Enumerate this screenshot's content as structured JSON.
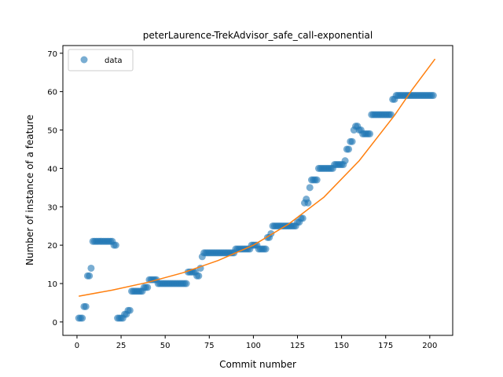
{
  "chart_data": {
    "type": "scatter",
    "title": "peterLaurence-TrekAdvisor_safe_call-exponential",
    "xlabel": "Commit number",
    "ylabel": "Number of instance of a feature",
    "xlim": [
      -8,
      213
    ],
    "ylim": [
      -3.5,
      72
    ],
    "xticks": [
      0,
      25,
      50,
      75,
      100,
      125,
      150,
      175,
      200
    ],
    "yticks": [
      0,
      10,
      20,
      30,
      40,
      50,
      60,
      70
    ],
    "legend": {
      "placement": "top-left",
      "entries": [
        "data"
      ]
    },
    "grid": false,
    "colors": {
      "data": "#1f77b4",
      "fit": "#ff7f0e"
    },
    "series": [
      {
        "name": "data",
        "kind": "scatter",
        "segments": [
          [
            1,
            1,
            1
          ],
          [
            2,
            1,
            2
          ],
          [
            3,
            1,
            2
          ],
          [
            4,
            4,
            4
          ],
          [
            5,
            4,
            4
          ],
          [
            6,
            12,
            12
          ],
          [
            7,
            12,
            12
          ],
          [
            8,
            14,
            14
          ],
          [
            9,
            21,
            21
          ],
          [
            10,
            21,
            21
          ],
          [
            11,
            21,
            21
          ],
          [
            12,
            21,
            21
          ],
          [
            13,
            21,
            21
          ],
          [
            14,
            21,
            21
          ],
          [
            15,
            21,
            21
          ],
          [
            16,
            21,
            21
          ],
          [
            17,
            21,
            21
          ],
          [
            18,
            21,
            21
          ],
          [
            19,
            21,
            21
          ],
          [
            20,
            21,
            21
          ],
          [
            21,
            20,
            20
          ],
          [
            22,
            20,
            20
          ],
          [
            23,
            1,
            1
          ],
          [
            24,
            1,
            1
          ],
          [
            25,
            1,
            1
          ],
          [
            26,
            1,
            1
          ],
          [
            27,
            2,
            2
          ],
          [
            28,
            2,
            2
          ],
          [
            29,
            3,
            3
          ],
          [
            30,
            3,
            3
          ],
          [
            31,
            8,
            8
          ],
          [
            32,
            8,
            8
          ],
          [
            33,
            8,
            8
          ],
          [
            34,
            8,
            8
          ],
          [
            35,
            8,
            8
          ],
          [
            36,
            8,
            8
          ],
          [
            37,
            8,
            8
          ],
          [
            38,
            9,
            9
          ],
          [
            39,
            9,
            9
          ],
          [
            40,
            9,
            9
          ],
          [
            41,
            11,
            11
          ],
          [
            42,
            11,
            11
          ],
          [
            43,
            11,
            11
          ],
          [
            44,
            11,
            11
          ],
          [
            45,
            11,
            11
          ],
          [
            46,
            10,
            10
          ],
          [
            47,
            10,
            10
          ],
          [
            48,
            10,
            10
          ],
          [
            49,
            10,
            10
          ],
          [
            50,
            10,
            10
          ],
          [
            51,
            10,
            10
          ],
          [
            52,
            10,
            10
          ],
          [
            53,
            10,
            10
          ],
          [
            54,
            10,
            10
          ],
          [
            55,
            10,
            10
          ],
          [
            56,
            10,
            10
          ],
          [
            57,
            10,
            10
          ],
          [
            58,
            10,
            10
          ],
          [
            59,
            10,
            10
          ],
          [
            60,
            10,
            10
          ],
          [
            61,
            10,
            10
          ],
          [
            62,
            10,
            10
          ],
          [
            63,
            13,
            13
          ],
          [
            64,
            13,
            13
          ],
          [
            65,
            13,
            13
          ],
          [
            66,
            13,
            13
          ],
          [
            67,
            13,
            13
          ],
          [
            68,
            12,
            12
          ],
          [
            69,
            12,
            12
          ],
          [
            70,
            14,
            14
          ],
          [
            71,
            17,
            17
          ],
          [
            72,
            18,
            18
          ],
          [
            73,
            18,
            18
          ],
          [
            74,
            18,
            18
          ],
          [
            75,
            18,
            18
          ],
          [
            76,
            18,
            18
          ],
          [
            77,
            18,
            18
          ],
          [
            78,
            18,
            18
          ],
          [
            79,
            18,
            18
          ],
          [
            80,
            18,
            18
          ],
          [
            81,
            18,
            18
          ],
          [
            82,
            18,
            18
          ],
          [
            83,
            18,
            18
          ],
          [
            84,
            18,
            18
          ],
          [
            85,
            18,
            18
          ],
          [
            86,
            18,
            18
          ],
          [
            87,
            18,
            18
          ],
          [
            88,
            18,
            18
          ],
          [
            89,
            18,
            18
          ],
          [
            90,
            19,
            19
          ],
          [
            91,
            19,
            19
          ],
          [
            92,
            19,
            19
          ],
          [
            93,
            19,
            19
          ],
          [
            94,
            19,
            19
          ],
          [
            95,
            19,
            19
          ],
          [
            96,
            19,
            19
          ],
          [
            97,
            19,
            19
          ],
          [
            98,
            19,
            19
          ],
          [
            99,
            20,
            20
          ],
          [
            100,
            20,
            20
          ],
          [
            101,
            20,
            20
          ],
          [
            102,
            20,
            20
          ],
          [
            103,
            19,
            19
          ],
          [
            104,
            19,
            19
          ],
          [
            105,
            19,
            19
          ],
          [
            106,
            19,
            19
          ],
          [
            107,
            19,
            19
          ],
          [
            108,
            22,
            22
          ],
          [
            109,
            22,
            22
          ],
          [
            110,
            23,
            23
          ],
          [
            111,
            25,
            25
          ],
          [
            112,
            25,
            25
          ],
          [
            113,
            25,
            25
          ],
          [
            114,
            25,
            25
          ],
          [
            115,
            25,
            25
          ],
          [
            116,
            25,
            25
          ],
          [
            117,
            25,
            25
          ],
          [
            118,
            25,
            25
          ],
          [
            119,
            25,
            25
          ],
          [
            120,
            25,
            25
          ],
          [
            121,
            25,
            25
          ],
          [
            122,
            25,
            25
          ],
          [
            123,
            25,
            25
          ],
          [
            124,
            25,
            25
          ],
          [
            125,
            26,
            26
          ],
          [
            126,
            26,
            26
          ],
          [
            127,
            27,
            27
          ],
          [
            128,
            27,
            27
          ],
          [
            129,
            31,
            31
          ],
          [
            130,
            32,
            32
          ],
          [
            131,
            31,
            31
          ],
          [
            132,
            35,
            35
          ],
          [
            133,
            37,
            37
          ],
          [
            134,
            37,
            37
          ],
          [
            135,
            37,
            37
          ],
          [
            136,
            37,
            37
          ],
          [
            137,
            40,
            40
          ],
          [
            138,
            40,
            40
          ],
          [
            139,
            40,
            40
          ],
          [
            140,
            40,
            40
          ],
          [
            141,
            40,
            40
          ],
          [
            142,
            40,
            40
          ],
          [
            143,
            40,
            40
          ],
          [
            144,
            40,
            40
          ],
          [
            145,
            40,
            40
          ],
          [
            146,
            41,
            41
          ],
          [
            147,
            41,
            41
          ],
          [
            148,
            41,
            41
          ],
          [
            149,
            41,
            41
          ],
          [
            150,
            41,
            41
          ],
          [
            151,
            41,
            41
          ],
          [
            152,
            42,
            42
          ],
          [
            153,
            45,
            45
          ],
          [
            154,
            45,
            45
          ],
          [
            155,
            47,
            47
          ],
          [
            156,
            47,
            47
          ],
          [
            157,
            50,
            50
          ],
          [
            158,
            51,
            51
          ],
          [
            159,
            51,
            51
          ],
          [
            160,
            50,
            50
          ],
          [
            161,
            50,
            50
          ],
          [
            162,
            49,
            49
          ],
          [
            163,
            49,
            49
          ],
          [
            164,
            49,
            49
          ],
          [
            165,
            49,
            49
          ],
          [
            166,
            49,
            49
          ],
          [
            167,
            54,
            54
          ],
          [
            168,
            54,
            54
          ],
          [
            169,
            54,
            54
          ],
          [
            170,
            54,
            54
          ],
          [
            171,
            54,
            54
          ],
          [
            172,
            54,
            54
          ],
          [
            173,
            54,
            54
          ],
          [
            174,
            54,
            54
          ],
          [
            175,
            54,
            54
          ],
          [
            176,
            54,
            54
          ],
          [
            177,
            54,
            54
          ],
          [
            178,
            54,
            54
          ],
          [
            179,
            58,
            58
          ],
          [
            180,
            58,
            58
          ],
          [
            181,
            59,
            59
          ],
          [
            182,
            59,
            59
          ],
          [
            183,
            59,
            59
          ],
          [
            184,
            59,
            59
          ],
          [
            185,
            59,
            59
          ],
          [
            186,
            59,
            59
          ],
          [
            187,
            59,
            59
          ],
          [
            188,
            59,
            59
          ],
          [
            189,
            59,
            59
          ],
          [
            190,
            59,
            59
          ],
          [
            191,
            59,
            59
          ],
          [
            192,
            59,
            59
          ],
          [
            193,
            59,
            59
          ],
          [
            194,
            59,
            59
          ],
          [
            195,
            59,
            59
          ],
          [
            196,
            59,
            59
          ],
          [
            197,
            59,
            59
          ],
          [
            198,
            59,
            59
          ],
          [
            199,
            59,
            59
          ],
          [
            200,
            59,
            59
          ],
          [
            201,
            59,
            59
          ],
          [
            202,
            59,
            59
          ]
        ]
      },
      {
        "kind": "line",
        "x": [
          1,
          20,
          40,
          60,
          80,
          100,
          120,
          140,
          160,
          180,
          190,
          203
        ],
        "y": [
          6.7,
          8.3,
          10.3,
          12.8,
          16.0,
          20.0,
          25.5,
          32.5,
          42.0,
          53.8,
          60.5,
          68.5
        ]
      }
    ]
  }
}
